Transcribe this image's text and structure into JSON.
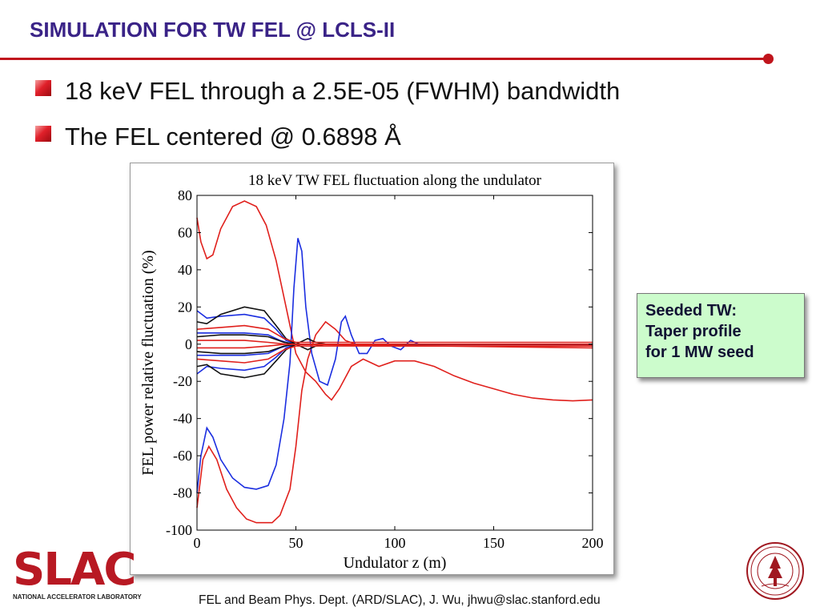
{
  "header": {
    "title": "SIMULATION FOR TW FEL @ LCLS-II"
  },
  "bullets": [
    "18 keV FEL through a 2.5E-05 (FWHM) bandwidth",
    "The FEL centered @ 0.6898 Å"
  ],
  "callout": {
    "lines": [
      "Seeded TW:",
      "Taper profile",
      "for 1 MW seed"
    ],
    "background": "#ccfccc"
  },
  "footer": {
    "text": "FEL and Beam Phys. Dept. (ARD/SLAC), J. Wu, jhwu@slac.stanford.edu"
  },
  "logo": {
    "letters": "SLAC",
    "subtitle": "NATIONAL ACCELERATOR LABORATORY",
    "color": "#b81923"
  },
  "seal": {
    "icon": "stanford-university-seal-icon"
  },
  "colors": {
    "title": "#3a2387",
    "rule": "#c0141c"
  },
  "chart_data": {
    "type": "line",
    "title": "18 keV TW FEL fluctuation along the undulator",
    "xlabel": "Undulator z (m)",
    "ylabel": "FEL power relative fluctuation (%)",
    "xlim": [
      0,
      200
    ],
    "ylim": [
      -100,
      80
    ],
    "xticks": [
      0,
      50,
      100,
      150,
      200
    ],
    "yticks": [
      80,
      60,
      40,
      20,
      0,
      -20,
      -40,
      -60,
      -80,
      -100
    ],
    "grid": false,
    "series": [
      {
        "color": "#e0201c",
        "points": [
          [
            0,
            68
          ],
          [
            2,
            55
          ],
          [
            5,
            46
          ],
          [
            8,
            48
          ],
          [
            12,
            62
          ],
          [
            18,
            74
          ],
          [
            24,
            77
          ],
          [
            30,
            74
          ],
          [
            35,
            64
          ],
          [
            40,
            45
          ],
          [
            45,
            20
          ],
          [
            50,
            -5
          ],
          [
            55,
            -15
          ],
          [
            60,
            -20
          ],
          [
            65,
            -27
          ],
          [
            68,
            -30
          ],
          [
            72,
            -24
          ],
          [
            78,
            -12
          ],
          [
            84,
            -8
          ],
          [
            88,
            -10
          ],
          [
            92,
            -12
          ],
          [
            100,
            -9
          ],
          [
            110,
            -9
          ],
          [
            120,
            -12
          ],
          [
            130,
            -17
          ],
          [
            140,
            -21
          ],
          [
            150,
            -24
          ],
          [
            160,
            -27
          ],
          [
            170,
            -29
          ],
          [
            180,
            -30
          ],
          [
            190,
            -30.5
          ],
          [
            200,
            -30
          ]
        ]
      },
      {
        "color": "#e0201c",
        "points": [
          [
            0,
            -88
          ],
          [
            3,
            -62
          ],
          [
            6,
            -55
          ],
          [
            10,
            -62
          ],
          [
            15,
            -78
          ],
          [
            20,
            -88
          ],
          [
            25,
            -94
          ],
          [
            30,
            -96
          ],
          [
            38,
            -96
          ],
          [
            42,
            -92
          ],
          [
            47,
            -78
          ],
          [
            50,
            -55
          ],
          [
            53,
            -25
          ],
          [
            56,
            -8
          ],
          [
            60,
            5
          ],
          [
            65,
            12
          ],
          [
            70,
            8
          ],
          [
            75,
            2
          ],
          [
            80,
            0
          ],
          [
            90,
            -1
          ],
          [
            100,
            -1
          ],
          [
            120,
            -1
          ],
          [
            150,
            -1
          ],
          [
            200,
            -1
          ]
        ]
      },
      {
        "color": "#1b2ee0",
        "points": [
          [
            0,
            -80
          ],
          [
            2,
            -60
          ],
          [
            5,
            -45
          ],
          [
            8,
            -50
          ],
          [
            12,
            -62
          ],
          [
            18,
            -72
          ],
          [
            24,
            -77
          ],
          [
            30,
            -78
          ],
          [
            36,
            -76
          ],
          [
            40,
            -65
          ],
          [
            44,
            -40
          ],
          [
            47,
            -10
          ],
          [
            49,
            30
          ],
          [
            51,
            57
          ],
          [
            53,
            50
          ],
          [
            55,
            20
          ],
          [
            58,
            -5
          ],
          [
            62,
            -20
          ],
          [
            66,
            -22
          ],
          [
            70,
            -8
          ],
          [
            73,
            12
          ],
          [
            75,
            15
          ],
          [
            78,
            5
          ],
          [
            82,
            -5
          ],
          [
            86,
            -5
          ],
          [
            90,
            2
          ],
          [
            94,
            3
          ],
          [
            98,
            -1
          ],
          [
            103,
            -3
          ],
          [
            108,
            2
          ],
          [
            112,
            0
          ],
          [
            118,
            0
          ],
          [
            130,
            0
          ],
          [
            200,
            0
          ]
        ]
      },
      {
        "color": "#1b2ee0",
        "points": [
          [
            0,
            18
          ],
          [
            5,
            14
          ],
          [
            12,
            15
          ],
          [
            24,
            16
          ],
          [
            34,
            14
          ],
          [
            40,
            8
          ],
          [
            45,
            2
          ],
          [
            50,
            0
          ],
          [
            60,
            0
          ],
          [
            70,
            0
          ],
          [
            100,
            0
          ],
          [
            200,
            0
          ]
        ]
      },
      {
        "color": "#1b2ee0",
        "points": [
          [
            0,
            -16
          ],
          [
            5,
            -12
          ],
          [
            12,
            -13
          ],
          [
            24,
            -14
          ],
          [
            34,
            -12
          ],
          [
            40,
            -7
          ],
          [
            45,
            -2
          ],
          [
            50,
            0
          ],
          [
            60,
            0
          ],
          [
            100,
            0
          ],
          [
            200,
            0
          ]
        ]
      },
      {
        "color": "#1b2ee0",
        "points": [
          [
            0,
            6
          ],
          [
            10,
            6
          ],
          [
            24,
            6
          ],
          [
            36,
            5
          ],
          [
            42,
            2
          ],
          [
            48,
            0
          ],
          [
            200,
            0
          ]
        ]
      },
      {
        "color": "#1b2ee0",
        "points": [
          [
            0,
            -6
          ],
          [
            10,
            -6
          ],
          [
            24,
            -6
          ],
          [
            36,
            -5
          ],
          [
            42,
            -2
          ],
          [
            48,
            0
          ],
          [
            200,
            0
          ]
        ]
      },
      {
        "color": "#111111",
        "points": [
          [
            0,
            12
          ],
          [
            5,
            11
          ],
          [
            12,
            16
          ],
          [
            24,
            20
          ],
          [
            34,
            18
          ],
          [
            40,
            10
          ],
          [
            45,
            3
          ],
          [
            50,
            0
          ],
          [
            56,
            3
          ],
          [
            60,
            1
          ],
          [
            65,
            0
          ],
          [
            200,
            0
          ]
        ]
      },
      {
        "color": "#111111",
        "points": [
          [
            0,
            -12
          ],
          [
            5,
            -11
          ],
          [
            12,
            -16
          ],
          [
            24,
            -18
          ],
          [
            34,
            -16
          ],
          [
            40,
            -9
          ],
          [
            45,
            -3
          ],
          [
            50,
            0
          ],
          [
            56,
            -3
          ],
          [
            60,
            -1
          ],
          [
            65,
            0
          ],
          [
            200,
            0
          ]
        ]
      },
      {
        "color": "#111111",
        "points": [
          [
            0,
            4
          ],
          [
            12,
            5
          ],
          [
            24,
            5
          ],
          [
            36,
            4
          ],
          [
            44,
            1
          ],
          [
            50,
            0
          ],
          [
            200,
            0
          ]
        ]
      },
      {
        "color": "#111111",
        "points": [
          [
            0,
            -4
          ],
          [
            12,
            -5
          ],
          [
            24,
            -5
          ],
          [
            36,
            -4
          ],
          [
            44,
            -1
          ],
          [
            50,
            0
          ],
          [
            200,
            0
          ]
        ]
      },
      {
        "color": "#e0201c",
        "points": [
          [
            0,
            2
          ],
          [
            12,
            2
          ],
          [
            24,
            2
          ],
          [
            36,
            1
          ],
          [
            45,
            0
          ],
          [
            200,
            0
          ]
        ]
      },
      {
        "color": "#e0201c",
        "points": [
          [
            0,
            -2
          ],
          [
            12,
            -2
          ],
          [
            24,
            -2
          ],
          [
            36,
            -1
          ],
          [
            45,
            0
          ],
          [
            120,
            -1
          ],
          [
            200,
            -2
          ]
        ]
      },
      {
        "color": "#e0201c",
        "points": [
          [
            0,
            8
          ],
          [
            12,
            9
          ],
          [
            24,
            10
          ],
          [
            36,
            8
          ],
          [
            44,
            3
          ],
          [
            50,
            1
          ],
          [
            200,
            1
          ]
        ]
      },
      {
        "color": "#e0201c",
        "points": [
          [
            0,
            -8
          ],
          [
            12,
            -9
          ],
          [
            24,
            -10
          ],
          [
            36,
            -8
          ],
          [
            44,
            -3
          ],
          [
            50,
            -1
          ],
          [
            200,
            -1
          ]
        ]
      }
    ]
  }
}
